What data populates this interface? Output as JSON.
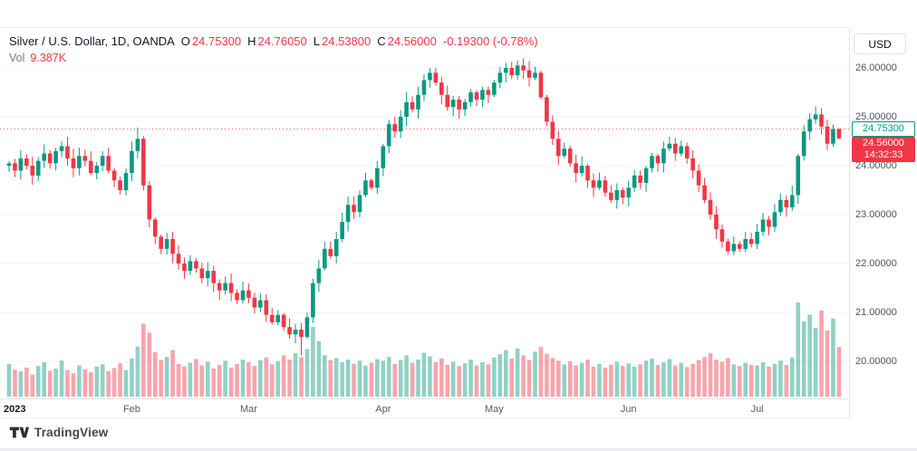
{
  "header": {
    "symbol_title": "Silver / U.S. Dollar, 1D, OANDA",
    "ohlc": {
      "o_label": "O",
      "o": "24.75300",
      "h_label": "H",
      "h": "24.76050",
      "l_label": "L",
      "l": "24.53800",
      "c_label": "C",
      "c": "24.56000",
      "change": "-0.19300 (-0.78%)"
    },
    "vol_label": "Vol",
    "vol_value": "9.387K",
    "currency_button": "USD"
  },
  "price_axis": {
    "labels": [
      "26.00000",
      "25.00000",
      "24.00000",
      "23.00000",
      "22.00000",
      "21.00000",
      "20.00000"
    ],
    "prices": [
      26,
      25,
      24,
      23,
      22,
      21,
      20
    ],
    "open_price_label": "24.75300",
    "last_price_label": "24.56000",
    "countdown": "14:32:33"
  },
  "footer": {
    "logo_text": "TradingView"
  },
  "colors": {
    "up": "#089981",
    "down": "#f23645",
    "vol_up": "rgba(8,153,129,0.45)",
    "vol_down": "rgba(242,54,69,0.45)",
    "open_line": "#f7525f",
    "gridline": "#f0f3fa",
    "last_label_bg": "#f23645",
    "open_label_border": "#089981"
  },
  "chart_data": {
    "type": "candlestick",
    "title": "Silver / U.S. Dollar, 1D, OANDA",
    "symbol": "Silver / U.S. Dollar",
    "interval": "1D",
    "exchange": "OANDA",
    "last_ohlc": {
      "open": 24.753,
      "high": 24.7605,
      "low": 24.538,
      "close": 24.56,
      "change": -0.193,
      "change_pct": -0.78
    },
    "volume_display": "9.387K",
    "ylim": [
      19.3,
      26.2
    ],
    "y_ticks": [
      20,
      21,
      22,
      23,
      24,
      25,
      26
    ],
    "open_line_price": 24.753,
    "first_open": 24.0,
    "month_ticks": [
      {
        "label": "2023",
        "index": 0
      },
      {
        "label": "Feb",
        "index": 21
      },
      {
        "label": "Mar",
        "index": 41
      },
      {
        "label": "Apr",
        "index": 64
      },
      {
        "label": "May",
        "index": 83
      },
      {
        "label": "Jun",
        "index": 106
      },
      {
        "label": "Jul",
        "index": 128
      }
    ],
    "closes": [
      24.05,
      23.9,
      24.15,
      24,
      23.8,
      24.1,
      24.25,
      24.05,
      24.3,
      24.4,
      24.15,
      23.95,
      24.2,
      24.1,
      23.85,
      24,
      24.2,
      23.9,
      23.7,
      23.5,
      23.85,
      24.3,
      24.55,
      23.6,
      22.9,
      22.55,
      22.3,
      22.5,
      22.2,
      22,
      21.85,
      22.05,
      21.9,
      21.7,
      21.85,
      21.6,
      21.45,
      21.6,
      21.4,
      21.25,
      21.45,
      21.3,
      21.1,
      21.25,
      20.95,
      20.8,
      20.95,
      20.7,
      20.55,
      20.65,
      20.5,
      20.9,
      21.6,
      21.9,
      22.3,
      22.15,
      22.5,
      22.85,
      23.2,
      23.05,
      23.4,
      23.7,
      23.55,
      23.95,
      24.4,
      24.85,
      24.7,
      25,
      25.3,
      25.15,
      25.45,
      25.75,
      25.9,
      25.7,
      25.45,
      25.2,
      25.35,
      25.15,
      25.3,
      25.5,
      25.35,
      25.55,
      25.45,
      25.7,
      25.9,
      26,
      25.85,
      26.05,
      25.95,
      25.8,
      25.9,
      25.4,
      24.9,
      24.55,
      24.2,
      24.35,
      24.05,
      23.85,
      24,
      23.7,
      23.55,
      23.7,
      23.45,
      23.3,
      23.5,
      23.35,
      23.55,
      23.8,
      23.65,
      23.95,
      24.2,
      24.05,
      24.35,
      24.45,
      24.25,
      24.4,
      24.15,
      23.9,
      23.6,
      23.3,
      23,
      22.7,
      22.45,
      22.25,
      22.4,
      22.3,
      22.5,
      22.4,
      22.65,
      22.9,
      22.75,
      23.05,
      23.3,
      23.15,
      23.4,
      24.2,
      24.7,
      24.95,
      25.05,
      24.8,
      24.45,
      24.75,
      24.56
    ],
    "volumes_k": [
      6.2,
      5.1,
      4.8,
      5.5,
      4.2,
      5.8,
      6.5,
      4.9,
      5.3,
      6.8,
      5,
      4.4,
      5.9,
      5.2,
      4.6,
      5.7,
      6.1,
      4.8,
      5.4,
      6.3,
      5,
      7.2,
      9.5,
      13.8,
      12.1,
      8.4,
      6.9,
      7.5,
      8.8,
      6.2,
      5.7,
      6.4,
      7.1,
      5.9,
      6.6,
      5.3,
      6,
      6.8,
      5.5,
      6.2,
      7,
      6.5,
      5.8,
      6.9,
      7.4,
      6.1,
      6.7,
      7.8,
      7,
      8.2,
      7.5,
      9,
      13.2,
      10.5,
      7.8,
      6.9,
      7.3,
      6.5,
      7,
      6.2,
      6.8,
      5.9,
      6.4,
      7.1,
      6.8,
      7.5,
      6.2,
      6.9,
      7.8,
      6.4,
      7,
      8.3,
      7.6,
      6.5,
      7.2,
      6,
      6.6,
      5.8,
      6.3,
      7,
      5.9,
      6.5,
      6.1,
      7.4,
      8,
      8.8,
      7.2,
      9.1,
      7.8,
      6.9,
      8.5,
      9.4,
      8.1,
      7.3,
      6.8,
      6.1,
      6.7,
      5.9,
      6.4,
      7,
      5.7,
      6.2,
      5.5,
      6,
      6.6,
      5.8,
      6.3,
      5.7,
      6.1,
      6.8,
      7.2,
      6,
      6.5,
      7.1,
      5.9,
      6.4,
      5.6,
      6.2,
      6.9,
      7.5,
      8.2,
      7,
      6.6,
      7.3,
      6.1,
      5.8,
      6.4,
      6,
      5.9,
      6.5,
      5.7,
      6.2,
      6.8,
      6,
      7.4,
      17.8,
      14.2,
      15.5,
      13,
      16.3,
      12.5,
      14.8,
      9.387
    ],
    "last_candle": {
      "open": 24.753,
      "high": 24.7605,
      "low": 24.538,
      "close": 24.56,
      "volume_k": 9.387
    },
    "wick_overrides": [
      {
        "index": 22,
        "high": 24.78
      },
      {
        "index": 87,
        "high": 26.15
      },
      {
        "index": 50,
        "low": 20.12
      }
    ],
    "legend_position": "top-left",
    "grid": "faint-horizontal"
  }
}
